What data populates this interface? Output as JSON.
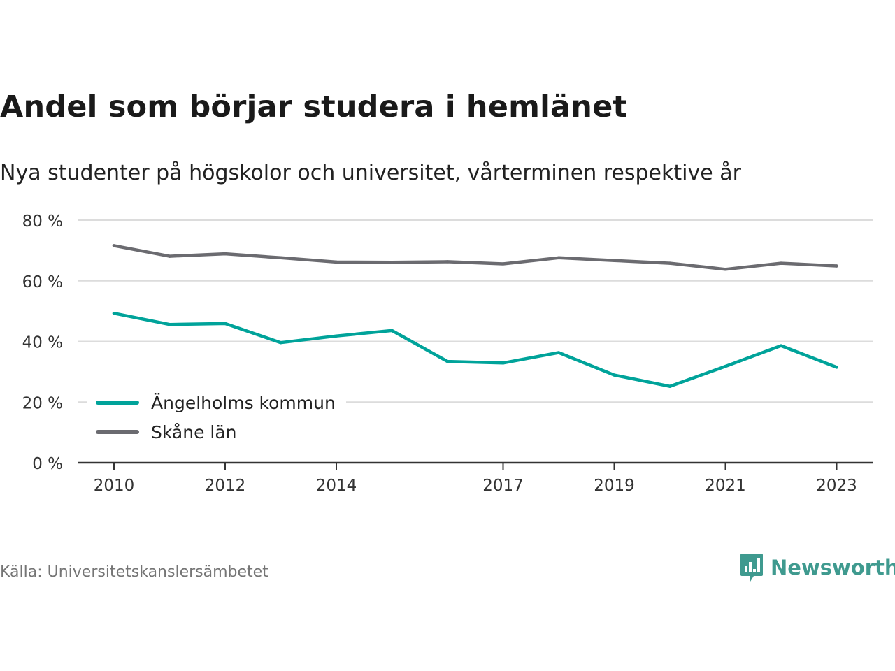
{
  "title": "Andel som börjar studera i hemlänet",
  "subtitle": "Nya studenter på högskolor och universitet, vårterminen respektive år",
  "source": "Källa: Universitetskanslersämbetet",
  "brand": {
    "name": "Newsworthy",
    "icon": "newsworthy-logo-icon",
    "color": "#3f9a8f"
  },
  "chart_data": {
    "type": "line",
    "x": [
      2010,
      2011,
      2012,
      2013,
      2014,
      2015,
      2016,
      2017,
      2018,
      2019,
      2020,
      2021,
      2022,
      2023
    ],
    "x_ticks": [
      2010,
      2012,
      2014,
      2017,
      2019,
      2021,
      2023
    ],
    "y_ticks": [
      0,
      20,
      40,
      60,
      80
    ],
    "y_tick_labels": [
      "0 %",
      "20 %",
      "40 %",
      "60 %",
      "80 %"
    ],
    "ylim": [
      0,
      80
    ],
    "grid": true,
    "legend_position": "bottom-left",
    "series": [
      {
        "name": "Ängelholms kommun",
        "color": "#00a39a",
        "values": [
          49.3,
          45.6,
          45.9,
          39.6,
          41.8,
          43.6,
          33.4,
          32.9,
          36.3,
          28.9,
          25.2,
          31.8,
          38.6,
          31.5
        ]
      },
      {
        "name": "Skåne län",
        "color": "#6b6b70",
        "values": [
          71.6,
          68.1,
          68.9,
          67.6,
          66.2,
          66.1,
          66.3,
          65.6,
          67.6,
          66.7,
          65.8,
          63.8,
          65.8,
          64.9
        ]
      }
    ]
  }
}
